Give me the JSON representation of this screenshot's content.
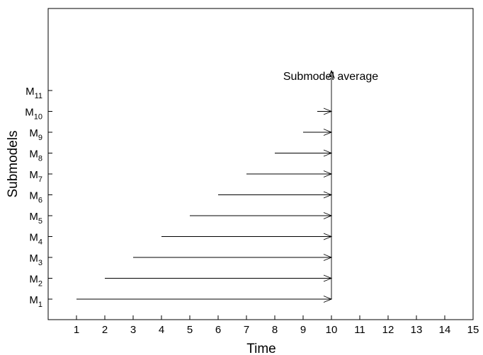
{
  "chart_data": {
    "type": "line",
    "xlabel": "Time",
    "ylabel": "Submodels",
    "annotation": "Submodel average",
    "xlim": [
      0,
      15
    ],
    "x_ticks": [
      "1",
      "2",
      "3",
      "4",
      "5",
      "6",
      "7",
      "8",
      "9",
      "10",
      "11",
      "12",
      "13",
      "14",
      "15"
    ],
    "y_ticks": [
      {
        "base": "M",
        "sub": "1"
      },
      {
        "base": "M",
        "sub": "2"
      },
      {
        "base": "M",
        "sub": "3"
      },
      {
        "base": "M",
        "sub": "4"
      },
      {
        "base": "M",
        "sub": "5"
      },
      {
        "base": "M",
        "sub": "6"
      },
      {
        "base": "M",
        "sub": "7"
      },
      {
        "base": "M",
        "sub": "8"
      },
      {
        "base": "M",
        "sub": "9"
      },
      {
        "base": "M",
        "sub": "10"
      },
      {
        "base": "M",
        "sub": "11"
      }
    ],
    "arrows": [
      {
        "submodel": "M1",
        "start": 1,
        "end": 10
      },
      {
        "submodel": "M2",
        "start": 2,
        "end": 10
      },
      {
        "submodel": "M3",
        "start": 3,
        "end": 10
      },
      {
        "submodel": "M4",
        "start": 4,
        "end": 10
      },
      {
        "submodel": "M5",
        "start": 5,
        "end": 10
      },
      {
        "submodel": "M6",
        "start": 6,
        "end": 10
      },
      {
        "submodel": "M7",
        "start": 7,
        "end": 10
      },
      {
        "submodel": "M8",
        "start": 8,
        "end": 10
      },
      {
        "submodel": "M9",
        "start": 9,
        "end": 10
      },
      {
        "submodel": "M10",
        "start": 9.5,
        "end": 10
      }
    ],
    "average_arrow": {
      "x": 10,
      "from": "M1",
      "to": "M11"
    },
    "grid": false,
    "legend": "none"
  }
}
